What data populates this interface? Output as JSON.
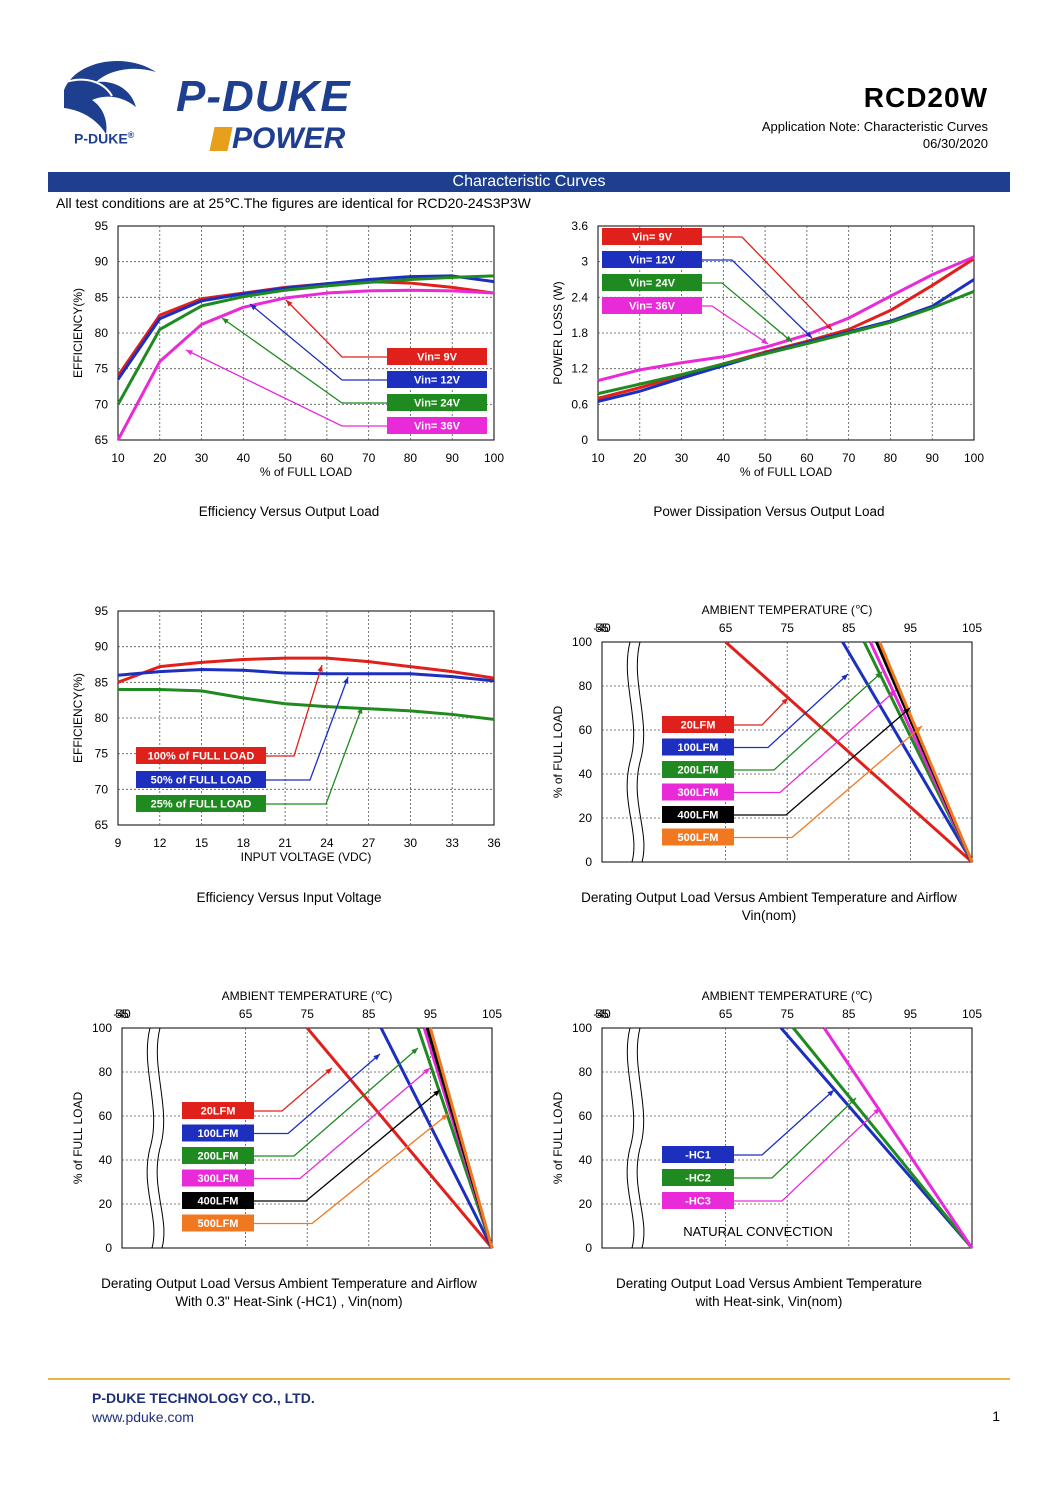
{
  "header": {
    "logo_small": "P-DUKE",
    "logo_reg": "®",
    "logo_brand": "P-DUKE",
    "logo_power": "POWER",
    "model": "RCD20W",
    "subtitle": "Application Note: Characteristic Curves",
    "date": "06/30/2020"
  },
  "banner": "Characteristic Curves",
  "test_note": "All test conditions are at 25℃.The figures are identical for RCD20-24S3P3W",
  "colors": {
    "red": "#e0201b",
    "blue": "#1c2fbf",
    "green": "#1f8a1f",
    "magenta": "#e82ad8",
    "black": "#000000",
    "orange": "#f07820",
    "banner": "#1e3f8f"
  },
  "charts": [
    {
      "id": "eff-load",
      "caption": "Efficiency Versus Output Load",
      "xlabel": "% of FULL LOAD",
      "ylabel": "EFFICIENCY(%)",
      "xticks": [
        "10",
        "20",
        "30",
        "40",
        "50",
        "60",
        "70",
        "80",
        "90",
        "100"
      ],
      "yticks": [
        "65",
        "70",
        "75",
        "80",
        "85",
        "90",
        "95"
      ]
    },
    {
      "id": "loss-load",
      "caption": "Power Dissipation Versus Output Load",
      "xlabel": "% of FULL LOAD",
      "ylabel": "POWER LOSS (W)",
      "xticks": [
        "10",
        "20",
        "30",
        "40",
        "50",
        "60",
        "70",
        "80",
        "90",
        "100"
      ],
      "yticks": [
        "0",
        "0.6",
        "1.2",
        "1.8",
        "2.4",
        "3",
        "3.6"
      ]
    },
    {
      "id": "eff-vin",
      "caption": "Efficiency Versus Input Voltage",
      "xlabel": "INPUT VOLTAGE (VDC)",
      "ylabel": "EFFICIENCY(%)",
      "xticks": [
        "9",
        "12",
        "15",
        "18",
        "21",
        "24",
        "27",
        "30",
        "33",
        "36"
      ],
      "yticks": [
        "65",
        "70",
        "75",
        "80",
        "85",
        "90",
        "95"
      ]
    },
    {
      "id": "derate-air",
      "caption": "Derating Output Load Versus Ambient Temperature and Airflow",
      "caption2": "Vin(nom)",
      "toplabel": "AMBIENT TEMPERATURE (℃)",
      "ylabel": "% of FULL LOAD",
      "xticks": [
        "-40",
        "55",
        "65",
        "75",
        "85",
        "95",
        "105"
      ],
      "yticks": [
        "0",
        "20",
        "40",
        "60",
        "80",
        "100"
      ]
    },
    {
      "id": "derate-hs1",
      "caption": "Derating Output Load Versus Ambient Temperature and Airflow",
      "caption2": "With 0.3\" Heat-Sink (-HC1) , Vin(nom)",
      "toplabel": "AMBIENT TEMPERATURE (℃)",
      "ylabel": "% of FULL LOAD",
      "xticks": [
        "-40",
        "55",
        "65",
        "75",
        "85",
        "95",
        "105"
      ],
      "yticks": [
        "0",
        "20",
        "40",
        "60",
        "80",
        "100"
      ]
    },
    {
      "id": "derate-hs",
      "caption": "Derating Output Load Versus Ambient Temperature",
      "caption2": "with Heat-sink, Vin(nom)",
      "toplabel": "AMBIENT TEMPERATURE (℃)",
      "ylabel": "% of FULL LOAD",
      "xticks": [
        "-40",
        "55",
        "65",
        "75",
        "85",
        "95",
        "105"
      ],
      "yticks": [
        "0",
        "20",
        "40",
        "60",
        "80",
        "100"
      ],
      "note": "NATURAL CONVECTION"
    }
  ],
  "chart_data": [
    {
      "type": "line",
      "title": "Efficiency Versus Output Load",
      "xlabel": "% of FULL LOAD",
      "ylabel": "EFFICIENCY(%)",
      "xlim": [
        10,
        100
      ],
      "ylim": [
        65,
        95
      ],
      "x": [
        10,
        20,
        30,
        40,
        50,
        60,
        70,
        80,
        90,
        100
      ],
      "series": [
        {
          "name": "Vin= 9V",
          "color": "red",
          "values": [
            74,
            82.5,
            84.8,
            85.6,
            86.4,
            86.9,
            87.2,
            87.0,
            86.4,
            85.6
          ]
        },
        {
          "name": "Vin= 12V",
          "color": "blue",
          "values": [
            73.5,
            82,
            84.5,
            85.5,
            86.3,
            86.9,
            87.5,
            87.9,
            88.0,
            87.2
          ]
        },
        {
          "name": "Vin= 24V",
          "color": "green",
          "values": [
            70,
            80.5,
            83.8,
            85.1,
            86.0,
            86.6,
            87.1,
            87.5,
            87.8,
            88.0
          ]
        },
        {
          "name": "Vin= 36V",
          "color": "magenta",
          "values": [
            65,
            76,
            81.2,
            83.6,
            84.9,
            85.6,
            85.9,
            86.0,
            85.9,
            85.6
          ]
        }
      ]
    },
    {
      "type": "line",
      "title": "Power Dissipation Versus Output Load",
      "xlabel": "% of FULL LOAD",
      "ylabel": "POWER LOSS (W)",
      "xlim": [
        10,
        100
      ],
      "ylim": [
        0,
        3.6
      ],
      "x": [
        10,
        20,
        30,
        40,
        50,
        60,
        70,
        80,
        90,
        100
      ],
      "series": [
        {
          "name": "Vin= 9V",
          "color": "red",
          "values": [
            0.7,
            0.88,
            1.08,
            1.28,
            1.48,
            1.66,
            1.86,
            2.18,
            2.6,
            3.05
          ]
        },
        {
          "name": "Vin= 12V",
          "color": "blue",
          "values": [
            0.65,
            0.82,
            1.04,
            1.25,
            1.46,
            1.64,
            1.82,
            2.0,
            2.25,
            2.7
          ]
        },
        {
          "name": "Vin= 24V",
          "color": "green",
          "values": [
            0.78,
            0.94,
            1.1,
            1.28,
            1.45,
            1.62,
            1.8,
            1.98,
            2.22,
            2.5
          ]
        },
        {
          "name": "Vin= 36V",
          "color": "magenta",
          "values": [
            1.0,
            1.18,
            1.3,
            1.4,
            1.56,
            1.77,
            2.05,
            2.42,
            2.78,
            3.08
          ]
        }
      ]
    },
    {
      "type": "line",
      "title": "Efficiency Versus Input Voltage",
      "xlabel": "INPUT VOLTAGE (VDC)",
      "ylabel": "EFFICIENCY(%)",
      "xlim": [
        9,
        36
      ],
      "ylim": [
        65,
        95
      ],
      "x": [
        9,
        12,
        15,
        18,
        21,
        24,
        27,
        30,
        33,
        36
      ],
      "series": [
        {
          "name": "100% of FULL LOAD",
          "color": "red",
          "values": [
            85,
            87.2,
            87.8,
            88.2,
            88.4,
            88.4,
            87.9,
            87.2,
            86.5,
            85.6
          ]
        },
        {
          "name": "50% of FULL LOAD",
          "color": "blue",
          "values": [
            86,
            86.5,
            86.8,
            86.7,
            86.3,
            86.2,
            86.2,
            86.2,
            85.8,
            85.2
          ]
        },
        {
          "name": "25% of FULL LOAD",
          "color": "green",
          "values": [
            84,
            84,
            83.8,
            82.8,
            82,
            81.6,
            81.3,
            81.0,
            80.5,
            79.8
          ]
        }
      ]
    },
    {
      "type": "line",
      "title": "Derating Output Load Versus Ambient Temperature and Airflow",
      "xlabel": "AMBIENT TEMPERATURE (℃)",
      "ylabel": "% of FULL LOAD",
      "ylim": [
        0,
        100
      ],
      "series": [
        {
          "name": "20LFM",
          "color": "red",
          "x": [
            -40,
            65,
            105
          ],
          "values": [
            100,
            100,
            0
          ]
        },
        {
          "name": "100LFM",
          "color": "blue",
          "x": [
            -40,
            84,
            105
          ],
          "values": [
            100,
            100,
            0
          ]
        },
        {
          "name": "200LFM",
          "color": "green",
          "x": [
            -40,
            87.5,
            105
          ],
          "values": [
            100,
            100,
            0
          ]
        },
        {
          "name": "300LFM",
          "color": "magenta",
          "x": [
            -40,
            88.5,
            105
          ],
          "values": [
            100,
            100,
            0
          ]
        },
        {
          "name": "400LFM",
          "color": "black",
          "x": [
            -40,
            89.5,
            105
          ],
          "values": [
            100,
            100,
            0
          ]
        },
        {
          "name": "500LFM",
          "color": "orange",
          "x": [
            -40,
            90,
            105
          ],
          "values": [
            100,
            100,
            0
          ]
        }
      ]
    },
    {
      "type": "line",
      "title": "Derating Output Load Versus Ambient Temperature and Airflow With 0.3\" Heat-Sink (-HC1)",
      "xlabel": "AMBIENT TEMPERATURE (℃)",
      "ylabel": "% of FULL LOAD",
      "ylim": [
        0,
        100
      ],
      "series": [
        {
          "name": "20LFM",
          "color": "red",
          "x": [
            -40,
            75,
            105
          ],
          "values": [
            100,
            100,
            0
          ]
        },
        {
          "name": "100LFM",
          "color": "blue",
          "x": [
            -40,
            87,
            105
          ],
          "values": [
            100,
            100,
            0
          ]
        },
        {
          "name": "200LFM",
          "color": "green",
          "x": [
            -40,
            93,
            105
          ],
          "values": [
            100,
            100,
            0
          ]
        },
        {
          "name": "300LFM",
          "color": "magenta",
          "x": [
            -40,
            94,
            105
          ],
          "values": [
            100,
            100,
            0
          ]
        },
        {
          "name": "400LFM",
          "color": "black",
          "x": [
            -40,
            94.5,
            105
          ],
          "values": [
            100,
            100,
            0
          ]
        },
        {
          "name": "500LFM",
          "color": "orange",
          "x": [
            -40,
            95,
            105
          ],
          "values": [
            100,
            100,
            0
          ]
        }
      ]
    },
    {
      "type": "line",
      "title": "Derating Output Load Versus Ambient Temperature with Heat-sink",
      "xlabel": "AMBIENT TEMPERATURE (℃)",
      "ylabel": "% of FULL LOAD",
      "ylim": [
        0,
        100
      ],
      "series": [
        {
          "name": "-HC1",
          "color": "blue",
          "x": [
            -40,
            74,
            105
          ],
          "values": [
            100,
            100,
            0
          ]
        },
        {
          "name": "-HC2",
          "color": "green",
          "x": [
            -40,
            76,
            105
          ],
          "values": [
            100,
            100,
            0
          ]
        },
        {
          "name": "-HC3",
          "color": "magenta",
          "x": [
            -40,
            81,
            105
          ],
          "values": [
            100,
            100,
            0
          ]
        }
      ]
    }
  ],
  "footer": {
    "company": "P-DUKE TECHNOLOGY CO., LTD.",
    "url": "www.pduke.com",
    "page": "1"
  }
}
